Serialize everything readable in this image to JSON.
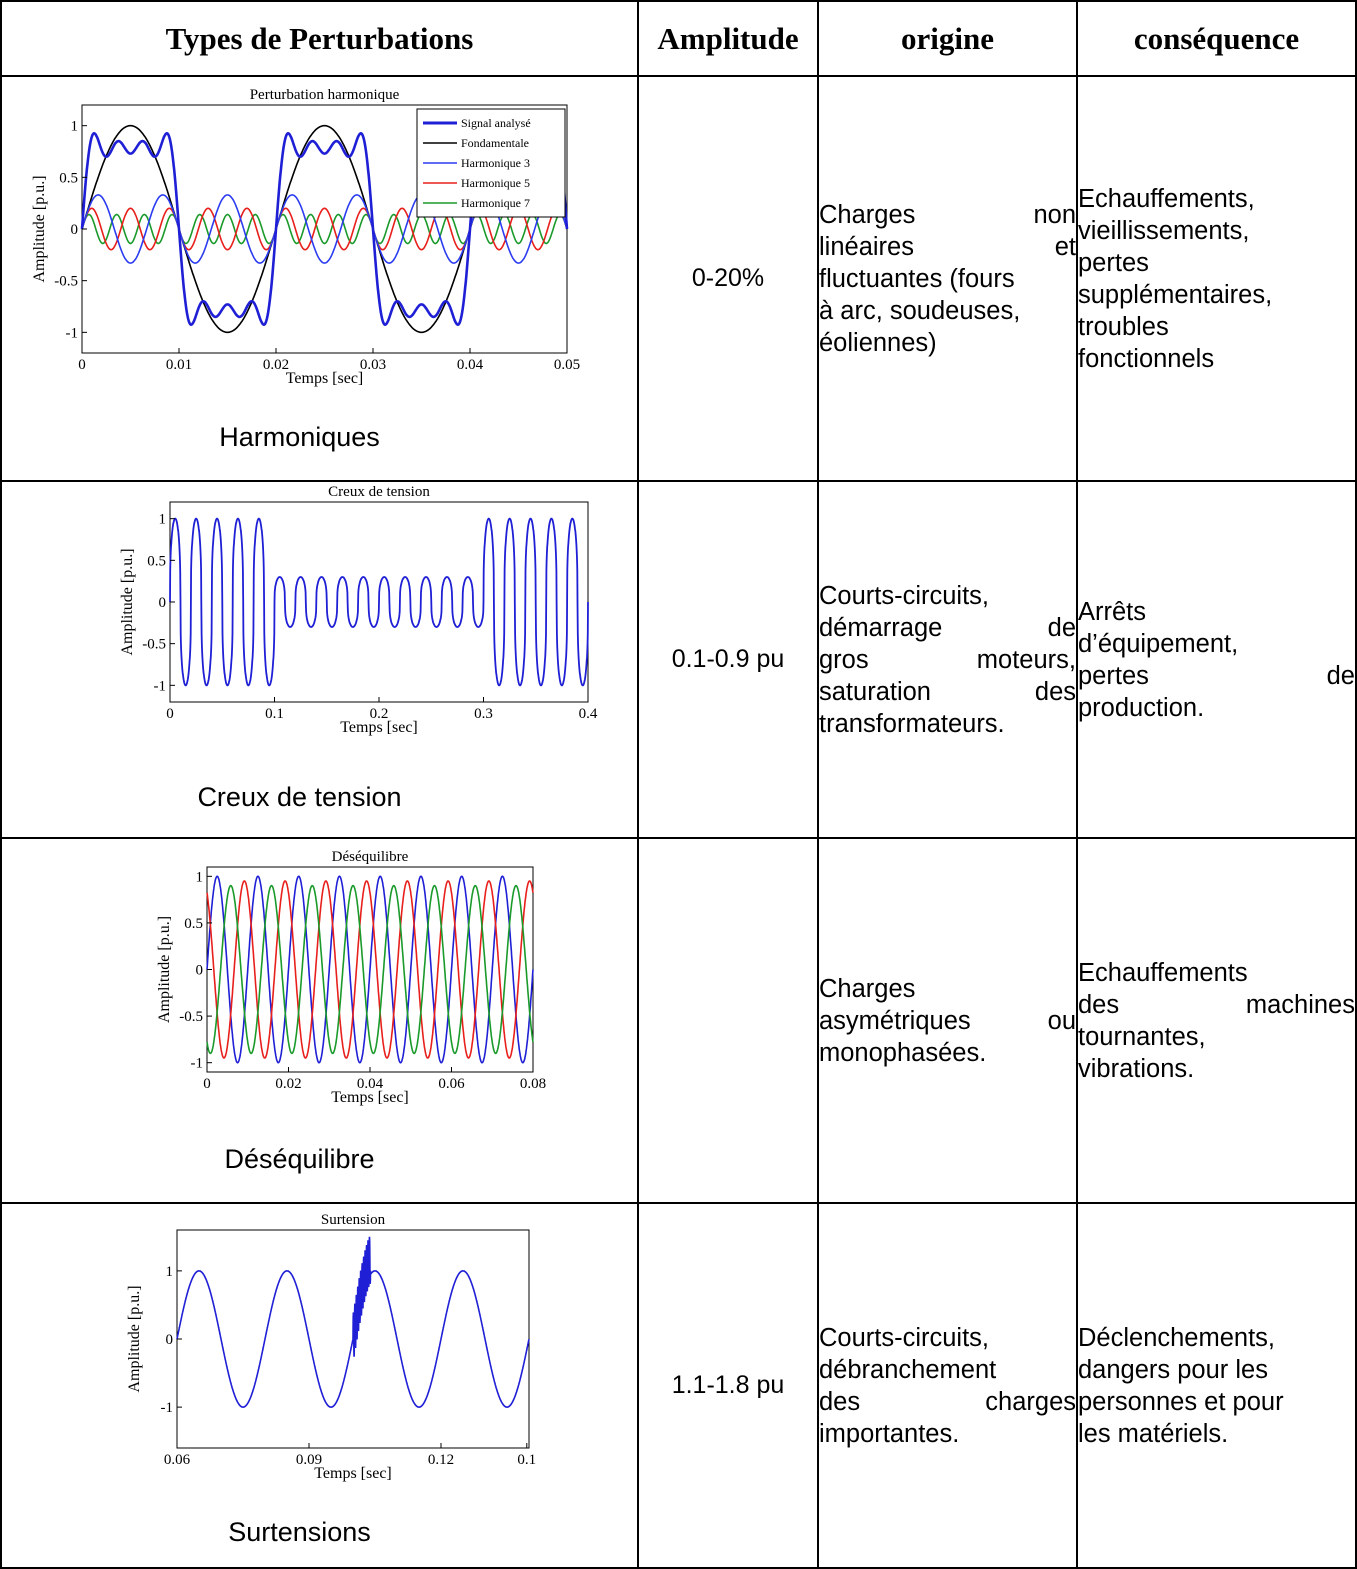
{
  "headers": {
    "types": "Types de Perturbations",
    "amplitude": "Amplitude",
    "origine": "origine",
    "consequence": "conséquence"
  },
  "rows": [
    {
      "caption": "Harmoniques",
      "amplitude": "0-20%",
      "origine": [
        "Charges non",
        "linéaires et",
        "fluctuantes (fours",
        "à arc, soudeuses,",
        "éoliennes)"
      ],
      "consequence": [
        "Echauffements,",
        "vieillissements,",
        "pertes",
        "supplémentaires,",
        "troubles",
        "fonctionnels"
      ]
    },
    {
      "caption": "Creux de tension",
      "amplitude": "0.1-0.9 pu",
      "origine": [
        "Courts-circuits,",
        "démarrage de",
        "gros moteurs,",
        "saturation des",
        "transformateurs."
      ],
      "consequence": [
        "Arrêts",
        "d’équipement,",
        "pertes de",
        "production."
      ]
    },
    {
      "caption": "Déséquilibre",
      "amplitude": "",
      "origine": [
        "Charges",
        "asymétriques ou",
        "monophasées."
      ],
      "consequence": [
        "Echauffements",
        "des machines",
        "tournantes,",
        "vibrations."
      ]
    },
    {
      "caption": "Surtensions",
      "amplitude": "1.1-1.8 pu",
      "origine": [
        "Courts-circuits,",
        "débranchement",
        "des charges",
        "importantes."
      ],
      "consequence": [
        "Déclenchements,",
        "dangers pour les",
        "personnes et pour",
        "les matériels."
      ]
    }
  ],
  "chart_data": [
    {
      "type": "line",
      "title": "Perturbation harmonique",
      "xlabel": "Temps [sec]",
      "ylabel": "Amplitude [p.u.]",
      "xlim": [
        0,
        0.05
      ],
      "ylim": [
        -1.2,
        1.2
      ],
      "xticks": [
        "0",
        "0.01",
        "0.02",
        "0.03",
        "0.04",
        "0.05"
      ],
      "yticks": [
        "1",
        "0.5",
        "0",
        "-0.5",
        "-1"
      ],
      "legend": "top-right",
      "series": [
        {
          "name": "Signal analysé",
          "color": "#1f1fd6",
          "formula": "sum of fundamental + h3 + h5 + h7",
          "frequency_hz": 50
        },
        {
          "name": "Fondamentale",
          "color": "#000000",
          "amplitude": 1.0,
          "frequency_hz": 50
        },
        {
          "name": "Harmonique 3",
          "color": "#2b3cf0",
          "amplitude": 0.33,
          "frequency_hz": 150
        },
        {
          "name": "Harmonique 5",
          "color": "#e8201c",
          "amplitude": 0.2,
          "frequency_hz": 250
        },
        {
          "name": "Harmonique 7",
          "color": "#1a9a2a",
          "amplitude": 0.14,
          "frequency_hz": 350
        }
      ]
    },
    {
      "type": "line",
      "title": "Creux de tension",
      "xlabel": "Temps [sec]",
      "ylabel": "Amplitude [p.u.]",
      "xlim": [
        0,
        0.4
      ],
      "ylim": [
        -1.2,
        1.2
      ],
      "xticks": [
        "0",
        "0.1",
        "0.2",
        "0.3",
        "0.4"
      ],
      "yticks": [
        "1",
        "0.5",
        "0",
        "-0.5",
        "-1"
      ],
      "series": [
        {
          "color": "#1f1fd6",
          "frequency_hz": 50,
          "amplitude": 1.0,
          "sag_start": 0.1,
          "sag_end": 0.3,
          "sag_amplitude": 0.3
        }
      ]
    },
    {
      "type": "line",
      "title": "Déséquilibre",
      "xlabel": "Temps [sec]",
      "ylabel": "Amplitude [p.u.]",
      "xlim": [
        0,
        0.08
      ],
      "ylim": [
        -1.1,
        1.1
      ],
      "xticks": [
        "0",
        "0.02",
        "0.04",
        "0.06",
        "0.08"
      ],
      "yticks": [
        "1",
        "0.5",
        "0",
        "-0.5",
        "-1"
      ],
      "series": [
        {
          "color": "#1f1fd6",
          "amplitude": 1.0,
          "frequency_hz": 100,
          "phase_deg": 0
        },
        {
          "color": "#e8201c",
          "amplitude": 0.95,
          "frequency_hz": 100,
          "phase_deg": 120
        },
        {
          "color": "#1a9a2a",
          "amplitude": 0.9,
          "frequency_hz": 100,
          "phase_deg": 240
        }
      ]
    },
    {
      "type": "line",
      "title": "Surtension",
      "xlabel": "Temps [sec]",
      "ylabel": "Amplitude [p.u.]",
      "xlim": [
        0.06,
        0.14
      ],
      "ylim": [
        -1.6,
        1.6
      ],
      "xticks": [
        "0.06",
        "0.09",
        "0.12",
        "0.1"
      ],
      "yticks": [
        "1",
        "0",
        "-1"
      ],
      "series": [
        {
          "color": "#1f1fd6",
          "amplitude": 1.0,
          "frequency_hz": 50,
          "swell_start": 0.1,
          "swell_end": 0.104,
          "swell_peak": 1.6
        }
      ]
    }
  ]
}
